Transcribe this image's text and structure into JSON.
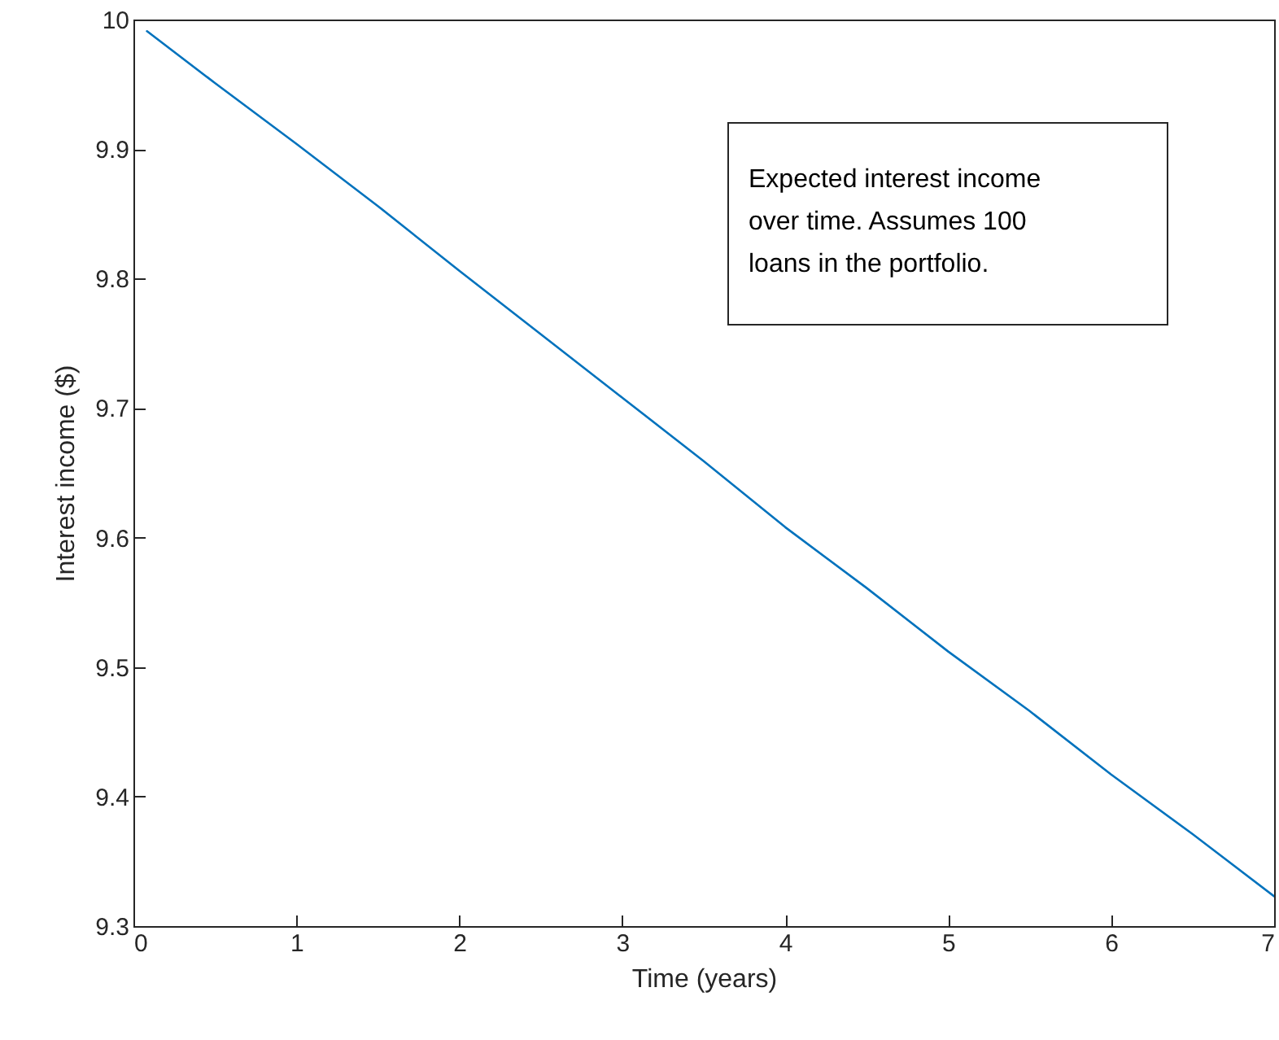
{
  "chart_data": {
    "type": "line",
    "xlabel": "Time (years)",
    "ylabel": "Interest income ($)",
    "x": [
      0.083,
      0.5,
      1,
      1.5,
      2,
      2.5,
      3,
      3.5,
      4,
      4.5,
      5,
      5.5,
      6,
      6.5,
      7
    ],
    "series": [
      {
        "color": "#0072bd",
        "values": [
          9.991,
          9.951,
          9.904,
          9.856,
          9.806,
          9.757,
          9.708,
          9.659,
          9.608,
          9.561,
          9.512,
          9.466,
          9.417,
          9.371,
          9.323
        ]
      }
    ],
    "xlim": [
      0,
      7
    ],
    "xticks": [
      0,
      1,
      2,
      3,
      4,
      5,
      6,
      7
    ],
    "ylim": [
      9.3,
      10
    ],
    "yticks": [
      9.3,
      9.4,
      9.5,
      9.6,
      9.7,
      9.8,
      9.9,
      10
    ],
    "grid": false,
    "legend": false,
    "marker": "none",
    "line_style": "solid",
    "annotations": [
      "Expected interest income\nover time. Assumes 100\nloans in the portfolio."
    ]
  }
}
